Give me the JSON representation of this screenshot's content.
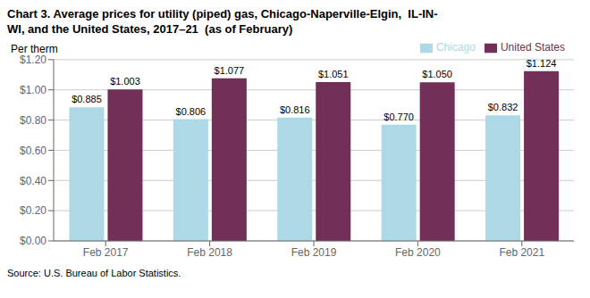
{
  "chart_data": {
    "type": "bar",
    "title": "Chart 3. Average prices for utility (piped) gas, Chicago-Naperville-Elgin,  IL-IN-\nWI, and the United States, 2017–21  (as of February)",
    "y_label": "Per therm",
    "source": "Source: U.S. Bureau of Labor Statistics.",
    "categories": [
      "Feb 2017",
      "Feb 2018",
      "Feb 2019",
      "Feb 2020",
      "Feb 2021"
    ],
    "series": [
      {
        "name": "Chicago",
        "color": "#ADD8E6",
        "values": [
          0.885,
          0.806,
          0.816,
          0.77,
          0.832
        ],
        "value_labels": [
          "$0.885",
          "$0.806",
          "$0.816",
          "$0.770",
          "$0.832"
        ]
      },
      {
        "name": "United States",
        "color": "#722F57",
        "values": [
          1.003,
          1.077,
          1.051,
          1.05,
          1.124
        ],
        "value_labels": [
          "$1.003",
          "$1.077",
          "$1.051",
          "$1.050",
          "$1.124"
        ]
      }
    ],
    "ylim": [
      0,
      1.2
    ],
    "yticks": [
      {
        "value": 0.0,
        "label": "$0.00"
      },
      {
        "value": 0.2,
        "label": "$0.20"
      },
      {
        "value": 0.4,
        "label": "$0.40"
      },
      {
        "value": 0.6,
        "label": "$0.60"
      },
      {
        "value": 0.8,
        "label": "$0.80"
      },
      {
        "value": 1.0,
        "label": "$1.00"
      },
      {
        "value": 1.2,
        "label": "$1.20"
      }
    ],
    "grid": true,
    "legend": "upper right",
    "data_labels": true
  }
}
